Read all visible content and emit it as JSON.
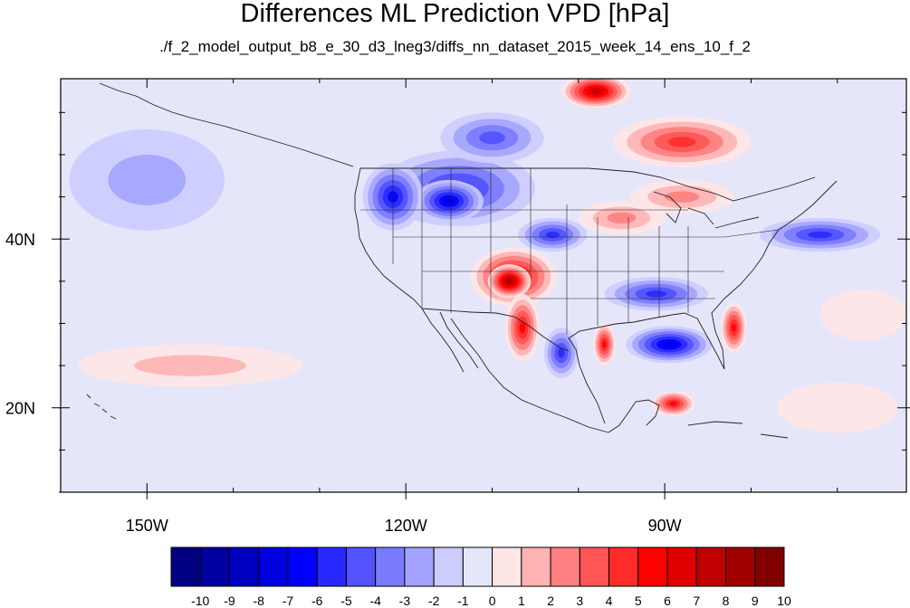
{
  "title": "Differences ML Prediction VPD [hPa]",
  "subtitle": "./f_2_model_output_b8_e_30_d3_lneg3/diffs_nn_dataset_2015_week_14_ens_10_f_2",
  "map": {
    "lon_range": [
      -160,
      -62
    ],
    "lat_range": [
      10,
      59
    ],
    "projection": "cylindrical-equidistant",
    "x_ticks": [
      {
        "lon": -150,
        "label": "150W"
      },
      {
        "lon": -120,
        "label": "120W"
      },
      {
        "lon": -90,
        "label": "90W"
      }
    ],
    "y_ticks": [
      {
        "lat": 40,
        "label": "40N"
      },
      {
        "lat": 20,
        "label": "20N"
      }
    ],
    "minor_lon_step": 10,
    "minor_lat_step": 5
  },
  "colorbar": {
    "labels": [
      "-10",
      "-9",
      "-8",
      "-7",
      "-6",
      "-5",
      "-4",
      "-3",
      "-2",
      "-1",
      "0",
      "1",
      "2",
      "3",
      "4",
      "5",
      "6",
      "7",
      "8",
      "9",
      "10"
    ],
    "colors": [
      "#000080",
      "#0000A0",
      "#0000C0",
      "#0000E0",
      "#0000FF",
      "#2929FF",
      "#5252FF",
      "#7A7AFF",
      "#A3A3FF",
      "#CCCCFF",
      "#E6E6FA",
      "#FFE6E6",
      "#FFB3B3",
      "#FF8080",
      "#FF5555",
      "#FF2B2B",
      "#FF0000",
      "#E00000",
      "#C00000",
      "#A00000",
      "#800000"
    ]
  },
  "field_blobs": [
    {
      "name": "northern-rockies-negative",
      "lon": -114,
      "lat": 46,
      "rlon": 9,
      "rlat": 4.5,
      "value": -5
    },
    {
      "name": "idaho-negative-core",
      "lon": -115,
      "lat": 44.5,
      "rlon": 4,
      "rlat": 2.5,
      "value": -7
    },
    {
      "name": "pacific-northwest-negative",
      "lon": -121.5,
      "lat": 45,
      "rlon": 3.5,
      "rlat": 4,
      "value": -6
    },
    {
      "name": "canada-negative",
      "lon": -110,
      "lat": 52,
      "rlon": 6,
      "rlat": 3,
      "value": -4
    },
    {
      "name": "colorado-negative",
      "lon": -103,
      "lat": 40.5,
      "rlon": 4,
      "rlat": 2,
      "value": -5
    },
    {
      "name": "four-corners-positive",
      "lon": -107.5,
      "lat": 35.5,
      "rlon": 5,
      "rlat": 3.5,
      "value": 7
    },
    {
      "name": "new-mexico-positive-core",
      "lon": -108,
      "lat": 35,
      "rlon": 2.5,
      "rlat": 2,
      "value": 9
    },
    {
      "name": "sierra-madre-positive",
      "lon": -106.5,
      "lat": 29.5,
      "rlon": 2,
      "rlat": 4,
      "value": 6
    },
    {
      "name": "texas-gulf-positive",
      "lon": -97,
      "lat": 27.5,
      "rlon": 1.3,
      "rlat": 2.5,
      "value": 6
    },
    {
      "name": "gulf-of-mexico-negative",
      "lon": -89.5,
      "lat": 27.5,
      "rlon": 5,
      "rlat": 2.2,
      "value": -7
    },
    {
      "name": "south-central-negative",
      "lon": -91,
      "lat": 33.5,
      "rlon": 6,
      "rlat": 2,
      "value": -5
    },
    {
      "name": "florida-positive",
      "lon": -82,
      "lat": 29.5,
      "rlon": 1.5,
      "rlat": 3,
      "value": 6
    },
    {
      "name": "yucatan-positive",
      "lon": -89,
      "lat": 20.5,
      "rlon": 2.5,
      "rlat": 1.5,
      "value": 6
    },
    {
      "name": "northern-mexico-negative",
      "lon": -102,
      "lat": 26.5,
      "rlon": 2,
      "rlat": 3,
      "value": -5
    },
    {
      "name": "northeast-negative",
      "lon": -72,
      "lat": 40.5,
      "rlon": 7,
      "rlat": 2,
      "value": -5
    },
    {
      "name": "canada-north-positive",
      "lon": -98,
      "lat": 57.5,
      "rlon": 4,
      "rlat": 2,
      "value": 8
    },
    {
      "name": "ontario-positive",
      "lon": -88,
      "lat": 51.5,
      "rlon": 8,
      "rlat": 3,
      "value": 5
    },
    {
      "name": "great-lakes-positive",
      "lon": -88,
      "lat": 45,
      "rlon": 6,
      "rlat": 2,
      "value": 3
    },
    {
      "name": "plains-positive",
      "lon": -95,
      "lat": 42.5,
      "rlon": 5,
      "rlat": 2,
      "value": 3
    },
    {
      "name": "pacific-subtropical-positive",
      "lon": -145,
      "lat": 25,
      "rlon": 13,
      "rlat": 2.5,
      "value": 2
    },
    {
      "name": "gulf-of-alaska-negative",
      "lon": -150,
      "lat": 47,
      "rlon": 9,
      "rlat": 6,
      "value": -2
    },
    {
      "name": "atlantic-positive",
      "lon": -67,
      "lat": 31,
      "rlon": 5,
      "rlat": 3,
      "value": 1
    },
    {
      "name": "caribbean-positive",
      "lon": -70,
      "lat": 20,
      "rlon": 7,
      "rlat": 3,
      "value": 1
    }
  ]
}
